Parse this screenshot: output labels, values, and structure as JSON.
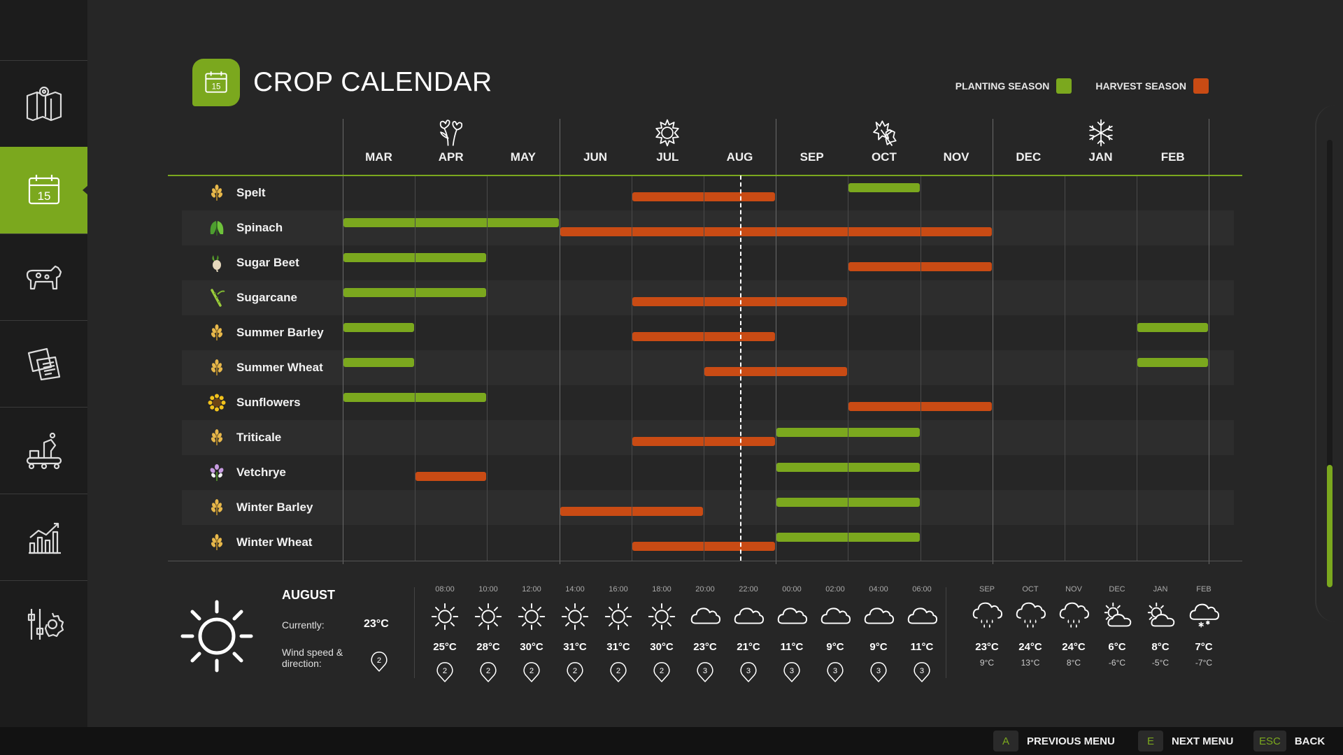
{
  "header": {
    "title": "CROP CALENDAR",
    "calendar_icon_day": "15"
  },
  "legend": {
    "planting_label": "PLANTING SEASON",
    "harvest_label": "HARVEST SEASON",
    "planting_color": "#7ba81e",
    "harvest_color": "#c94b14"
  },
  "sidebar": {
    "items": [
      {
        "icon": "map-icon",
        "active": false
      },
      {
        "icon": "calendar-icon",
        "active": true
      },
      {
        "icon": "cow-icon",
        "active": false
      },
      {
        "icon": "documents-icon",
        "active": false
      },
      {
        "icon": "production-icon",
        "active": false
      },
      {
        "icon": "statistics-icon",
        "active": false
      },
      {
        "icon": "settings-icon",
        "active": false
      }
    ]
  },
  "months": [
    "MAR",
    "APR",
    "MAY",
    "JUN",
    "JUL",
    "AUG",
    "SEP",
    "OCT",
    "NOV",
    "DEC",
    "JAN",
    "FEB"
  ],
  "seasons": [
    "spring-flower-icon",
    "summer-sun-icon",
    "autumn-leaf-icon",
    "winter-snowflake-icon"
  ],
  "current_month": "AUG",
  "crops": [
    {
      "name": "Spelt",
      "icon": "grain-icon",
      "planting": [
        [
          8,
          8
        ]
      ],
      "harvest": [
        [
          5,
          6
        ]
      ]
    },
    {
      "name": "Spinach",
      "icon": "spinach-icon",
      "planting": [
        [
          1,
          3
        ]
      ],
      "harvest": [
        [
          4,
          9
        ]
      ]
    },
    {
      "name": "Sugar Beet",
      "icon": "beet-icon",
      "planting": [
        [
          1,
          2
        ]
      ],
      "harvest": [
        [
          8,
          9
        ]
      ]
    },
    {
      "name": "Sugarcane",
      "icon": "sugarcane-icon",
      "planting": [
        [
          1,
          2
        ]
      ],
      "harvest": [
        [
          5,
          7
        ]
      ]
    },
    {
      "name": "Summer Barley",
      "icon": "grain-icon",
      "planting": [
        [
          1,
          1
        ],
        [
          12,
          12
        ]
      ],
      "harvest": [
        [
          5,
          6
        ]
      ]
    },
    {
      "name": "Summer Wheat",
      "icon": "grain-icon",
      "planting": [
        [
          1,
          1
        ],
        [
          12,
          12
        ]
      ],
      "harvest": [
        [
          6,
          7
        ]
      ]
    },
    {
      "name": "Sunflowers",
      "icon": "sunflower-icon",
      "planting": [
        [
          1,
          2
        ]
      ],
      "harvest": [
        [
          8,
          9
        ]
      ]
    },
    {
      "name": "Triticale",
      "icon": "grain-icon",
      "planting": [
        [
          7,
          8
        ]
      ],
      "harvest": [
        [
          5,
          6
        ]
      ]
    },
    {
      "name": "Vetchrye",
      "icon": "flower-icon",
      "planting": [
        [
          7,
          8
        ]
      ],
      "harvest": [
        [
          2,
          2
        ]
      ]
    },
    {
      "name": "Winter Barley",
      "icon": "grain-icon",
      "planting": [
        [
          7,
          8
        ]
      ],
      "harvest": [
        [
          4,
          5
        ]
      ]
    },
    {
      "name": "Winter Wheat",
      "icon": "grain-icon",
      "planting": [
        [
          7,
          8
        ]
      ],
      "harvest": [
        [
          5,
          6
        ]
      ]
    }
  ],
  "weather": {
    "month": "AUGUST",
    "current_label": "Currently:",
    "current_temp": "23°C",
    "wind_label": "Wind speed & direction:",
    "wind_value": "2",
    "hourly": [
      {
        "time": "08:00",
        "icon": "sun-icon",
        "temp": "25°C",
        "wind": "2"
      },
      {
        "time": "10:00",
        "icon": "sun-icon",
        "temp": "28°C",
        "wind": "2"
      },
      {
        "time": "12:00",
        "icon": "sun-icon",
        "temp": "30°C",
        "wind": "2"
      },
      {
        "time": "14:00",
        "icon": "sun-icon",
        "temp": "31°C",
        "wind": "2"
      },
      {
        "time": "16:00",
        "icon": "sun-icon",
        "temp": "31°C",
        "wind": "2"
      },
      {
        "time": "18:00",
        "icon": "sun-icon",
        "temp": "30°C",
        "wind": "2"
      },
      {
        "time": "20:00",
        "icon": "cloud-icon",
        "temp": "23°C",
        "wind": "3"
      },
      {
        "time": "22:00",
        "icon": "cloud-icon",
        "temp": "21°C",
        "wind": "3"
      },
      {
        "time": "00:00",
        "icon": "cloud-icon",
        "temp": "11°C",
        "wind": "3"
      },
      {
        "time": "02:00",
        "icon": "cloud-icon",
        "temp": "9°C",
        "wind": "3"
      },
      {
        "time": "04:00",
        "icon": "cloud-icon",
        "temp": "9°C",
        "wind": "3"
      },
      {
        "time": "06:00",
        "icon": "cloud-icon",
        "temp": "11°C",
        "wind": "3"
      }
    ],
    "monthly": [
      {
        "month": "SEP",
        "icon": "rain-cloud-icon",
        "high": "23°C",
        "low": "9°C"
      },
      {
        "month": "OCT",
        "icon": "rain-cloud-icon",
        "high": "24°C",
        "low": "13°C"
      },
      {
        "month": "NOV",
        "icon": "rain-cloud-icon",
        "high": "24°C",
        "low": "8°C"
      },
      {
        "month": "DEC",
        "icon": "partly-cloudy-icon",
        "high": "6°C",
        "low": "-6°C"
      },
      {
        "month": "JAN",
        "icon": "partly-cloudy-icon",
        "high": "8°C",
        "low": "-5°C"
      },
      {
        "month": "FEB",
        "icon": "snow-cloud-icon",
        "high": "7°C",
        "low": "-7°C"
      }
    ]
  },
  "footer": {
    "prev": {
      "key": "A",
      "label": "PREVIOUS MENU"
    },
    "next": {
      "key": "E",
      "label": "NEXT MENU"
    },
    "back": {
      "key": "ESC",
      "label": "BACK"
    }
  }
}
